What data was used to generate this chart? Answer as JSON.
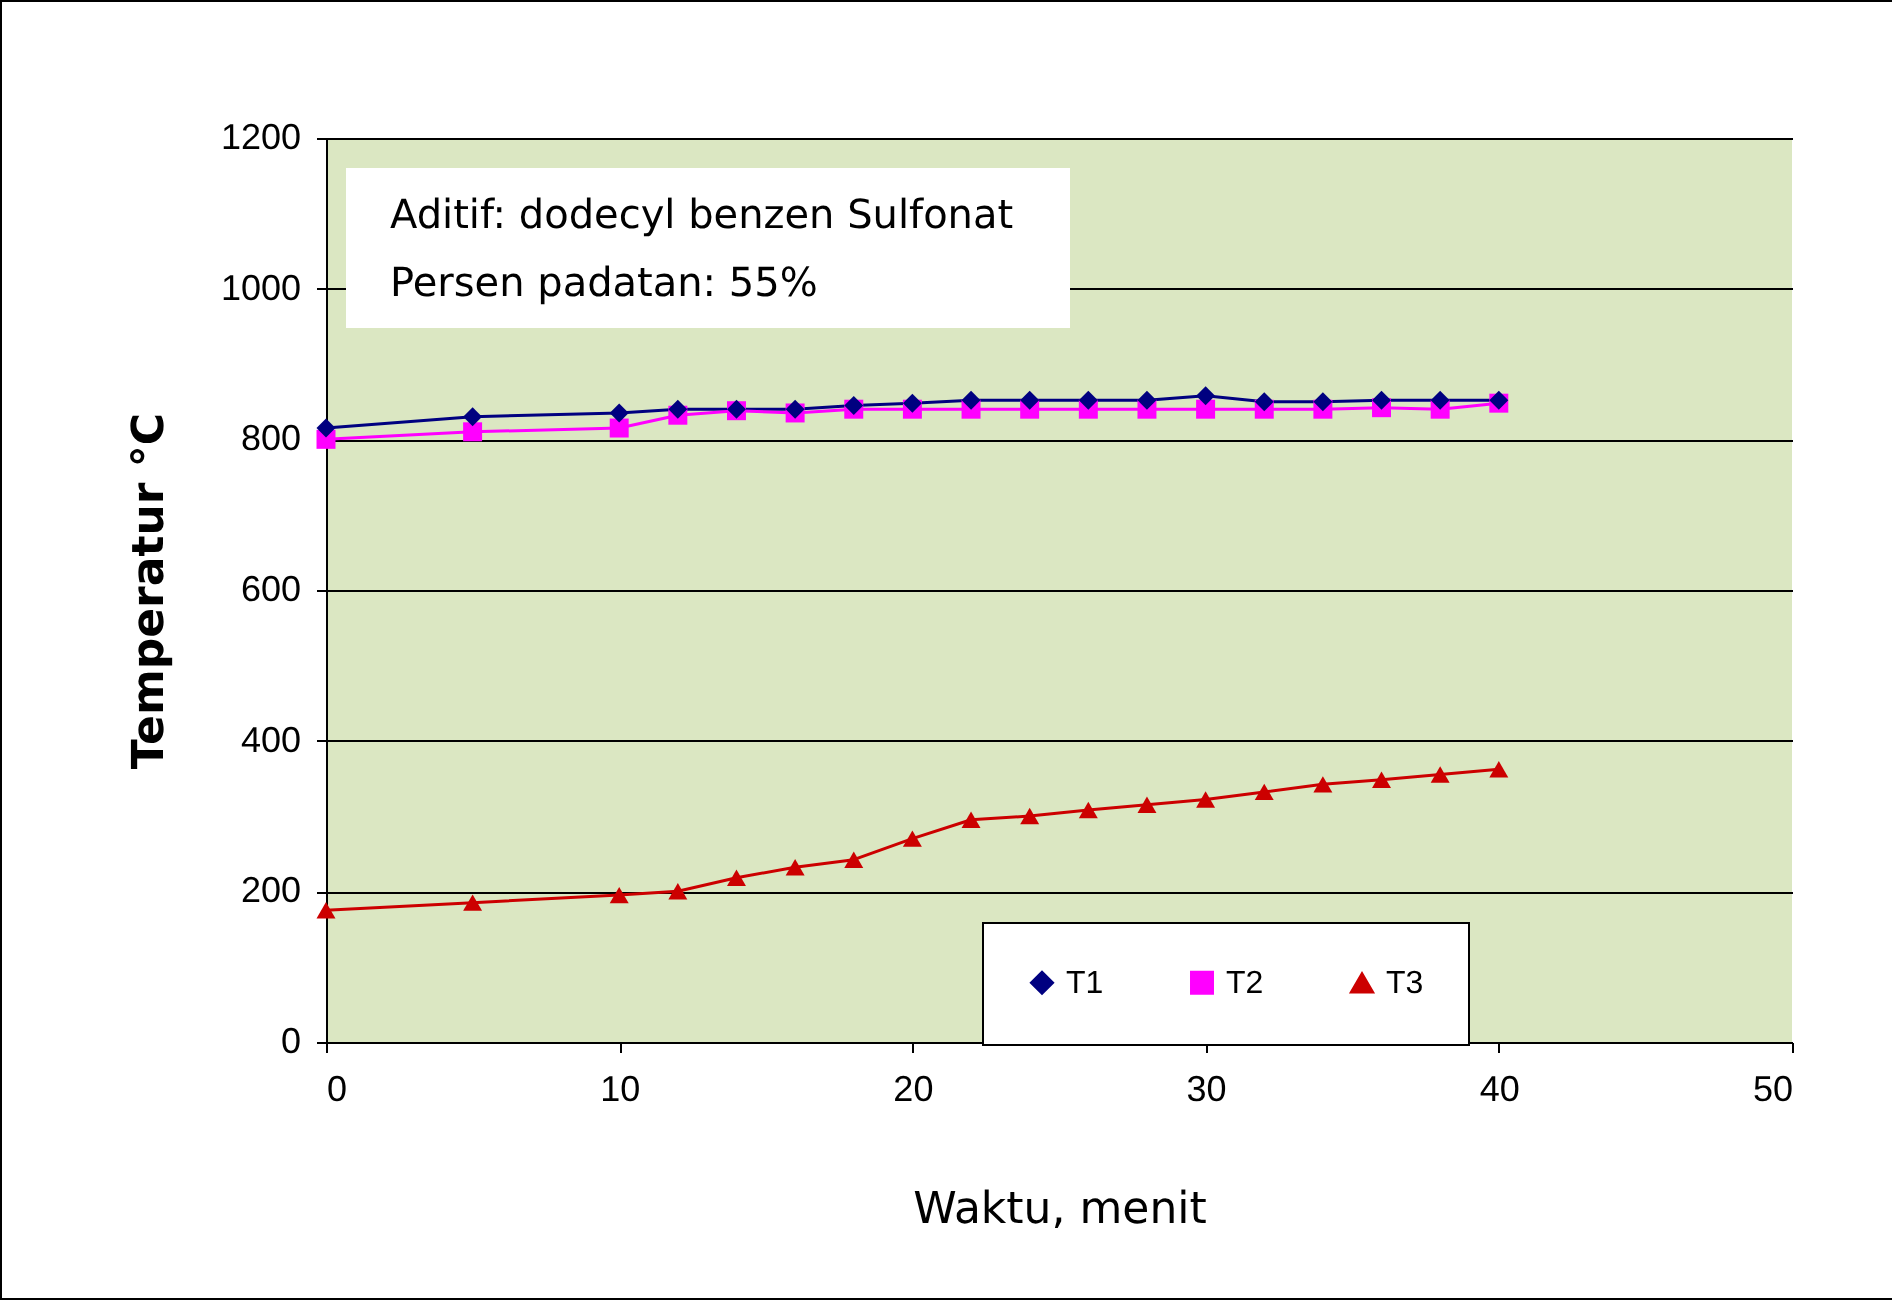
{
  "chart_data": {
    "type": "line",
    "xlabel": "Waktu, menit",
    "ylabel": "Temperatur °C",
    "annotations": [
      "Aditif: dodecyl benzen Sulfonat",
      "Persen padatan: 55%"
    ],
    "x": [
      0,
      5,
      10,
      12,
      14,
      16,
      18,
      20,
      22,
      24,
      26,
      28,
      30,
      32,
      34,
      36,
      38,
      40
    ],
    "series": [
      {
        "name": "T1",
        "color": "#000080",
        "marker": "diamond",
        "values": [
          815,
          830,
          835,
          840,
          840,
          840,
          845,
          848,
          852,
          852,
          852,
          852,
          858,
          850,
          850,
          852,
          852,
          852
        ]
      },
      {
        "name": "T2",
        "color": "#ff00ff",
        "marker": "square",
        "values": [
          800,
          810,
          815,
          832,
          838,
          835,
          840,
          840,
          840,
          840,
          840,
          840,
          840,
          840,
          840,
          842,
          840,
          848
        ]
      },
      {
        "name": "T3",
        "color": "#cc0000",
        "marker": "triangle",
        "values": [
          175,
          185,
          195,
          200,
          218,
          232,
          242,
          270,
          295,
          300,
          308,
          315,
          322,
          332,
          342,
          348,
          355,
          362
        ]
      }
    ],
    "xlim": [
      0,
      50
    ],
    "xticks": [
      0,
      10,
      20,
      30,
      40,
      50
    ],
    "ylim": [
      0,
      1200
    ],
    "yticks": [
      0,
      200,
      400,
      600,
      800,
      1000,
      1200
    ],
    "grid": "y",
    "legend": "bottom right",
    "line_style": "solid"
  }
}
